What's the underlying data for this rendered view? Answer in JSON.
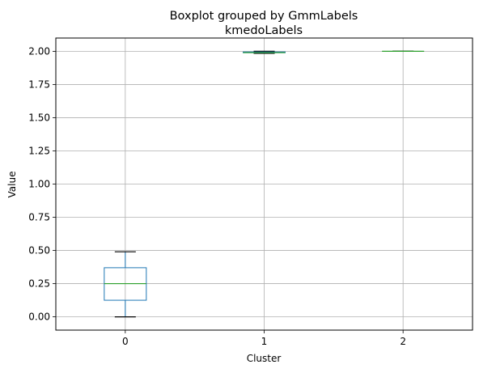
{
  "chart_data": {
    "type": "boxplot",
    "suptitle": "Boxplot grouped by GmmLabels",
    "title": "kmedoLabels",
    "xlabel": "Cluster",
    "ylabel": "Value",
    "categories": [
      "0",
      "1",
      "2"
    ],
    "ylim": [
      -0.1,
      2.1
    ],
    "yticks": [
      0.0,
      0.25,
      0.5,
      0.75,
      1.0,
      1.25,
      1.5,
      1.75,
      2.0
    ],
    "ytick_labels": [
      "0.00",
      "0.25",
      "0.50",
      "0.75",
      "1.00",
      "1.25",
      "1.50",
      "1.75",
      "2.00"
    ],
    "grid": true,
    "boxes": [
      {
        "category": "0",
        "whisker_low": 0.0,
        "q1": 0.125,
        "median": 0.25,
        "q3": 0.37,
        "whisker_high": 0.49
      },
      {
        "category": "1",
        "whisker_low": 1.985,
        "q1": 1.99,
        "median": 1.99,
        "q3": 1.995,
        "whisker_high": 2.0
      },
      {
        "category": "2",
        "whisker_low": 2.0,
        "q1": 2.0,
        "median": 2.0,
        "q3": 2.0,
        "whisker_high": 2.0
      }
    ],
    "colors": {
      "box": "#1f77b4",
      "median": "#2ca02c",
      "whisker_cap": "#000000",
      "grid": "#b0b0b0"
    }
  }
}
